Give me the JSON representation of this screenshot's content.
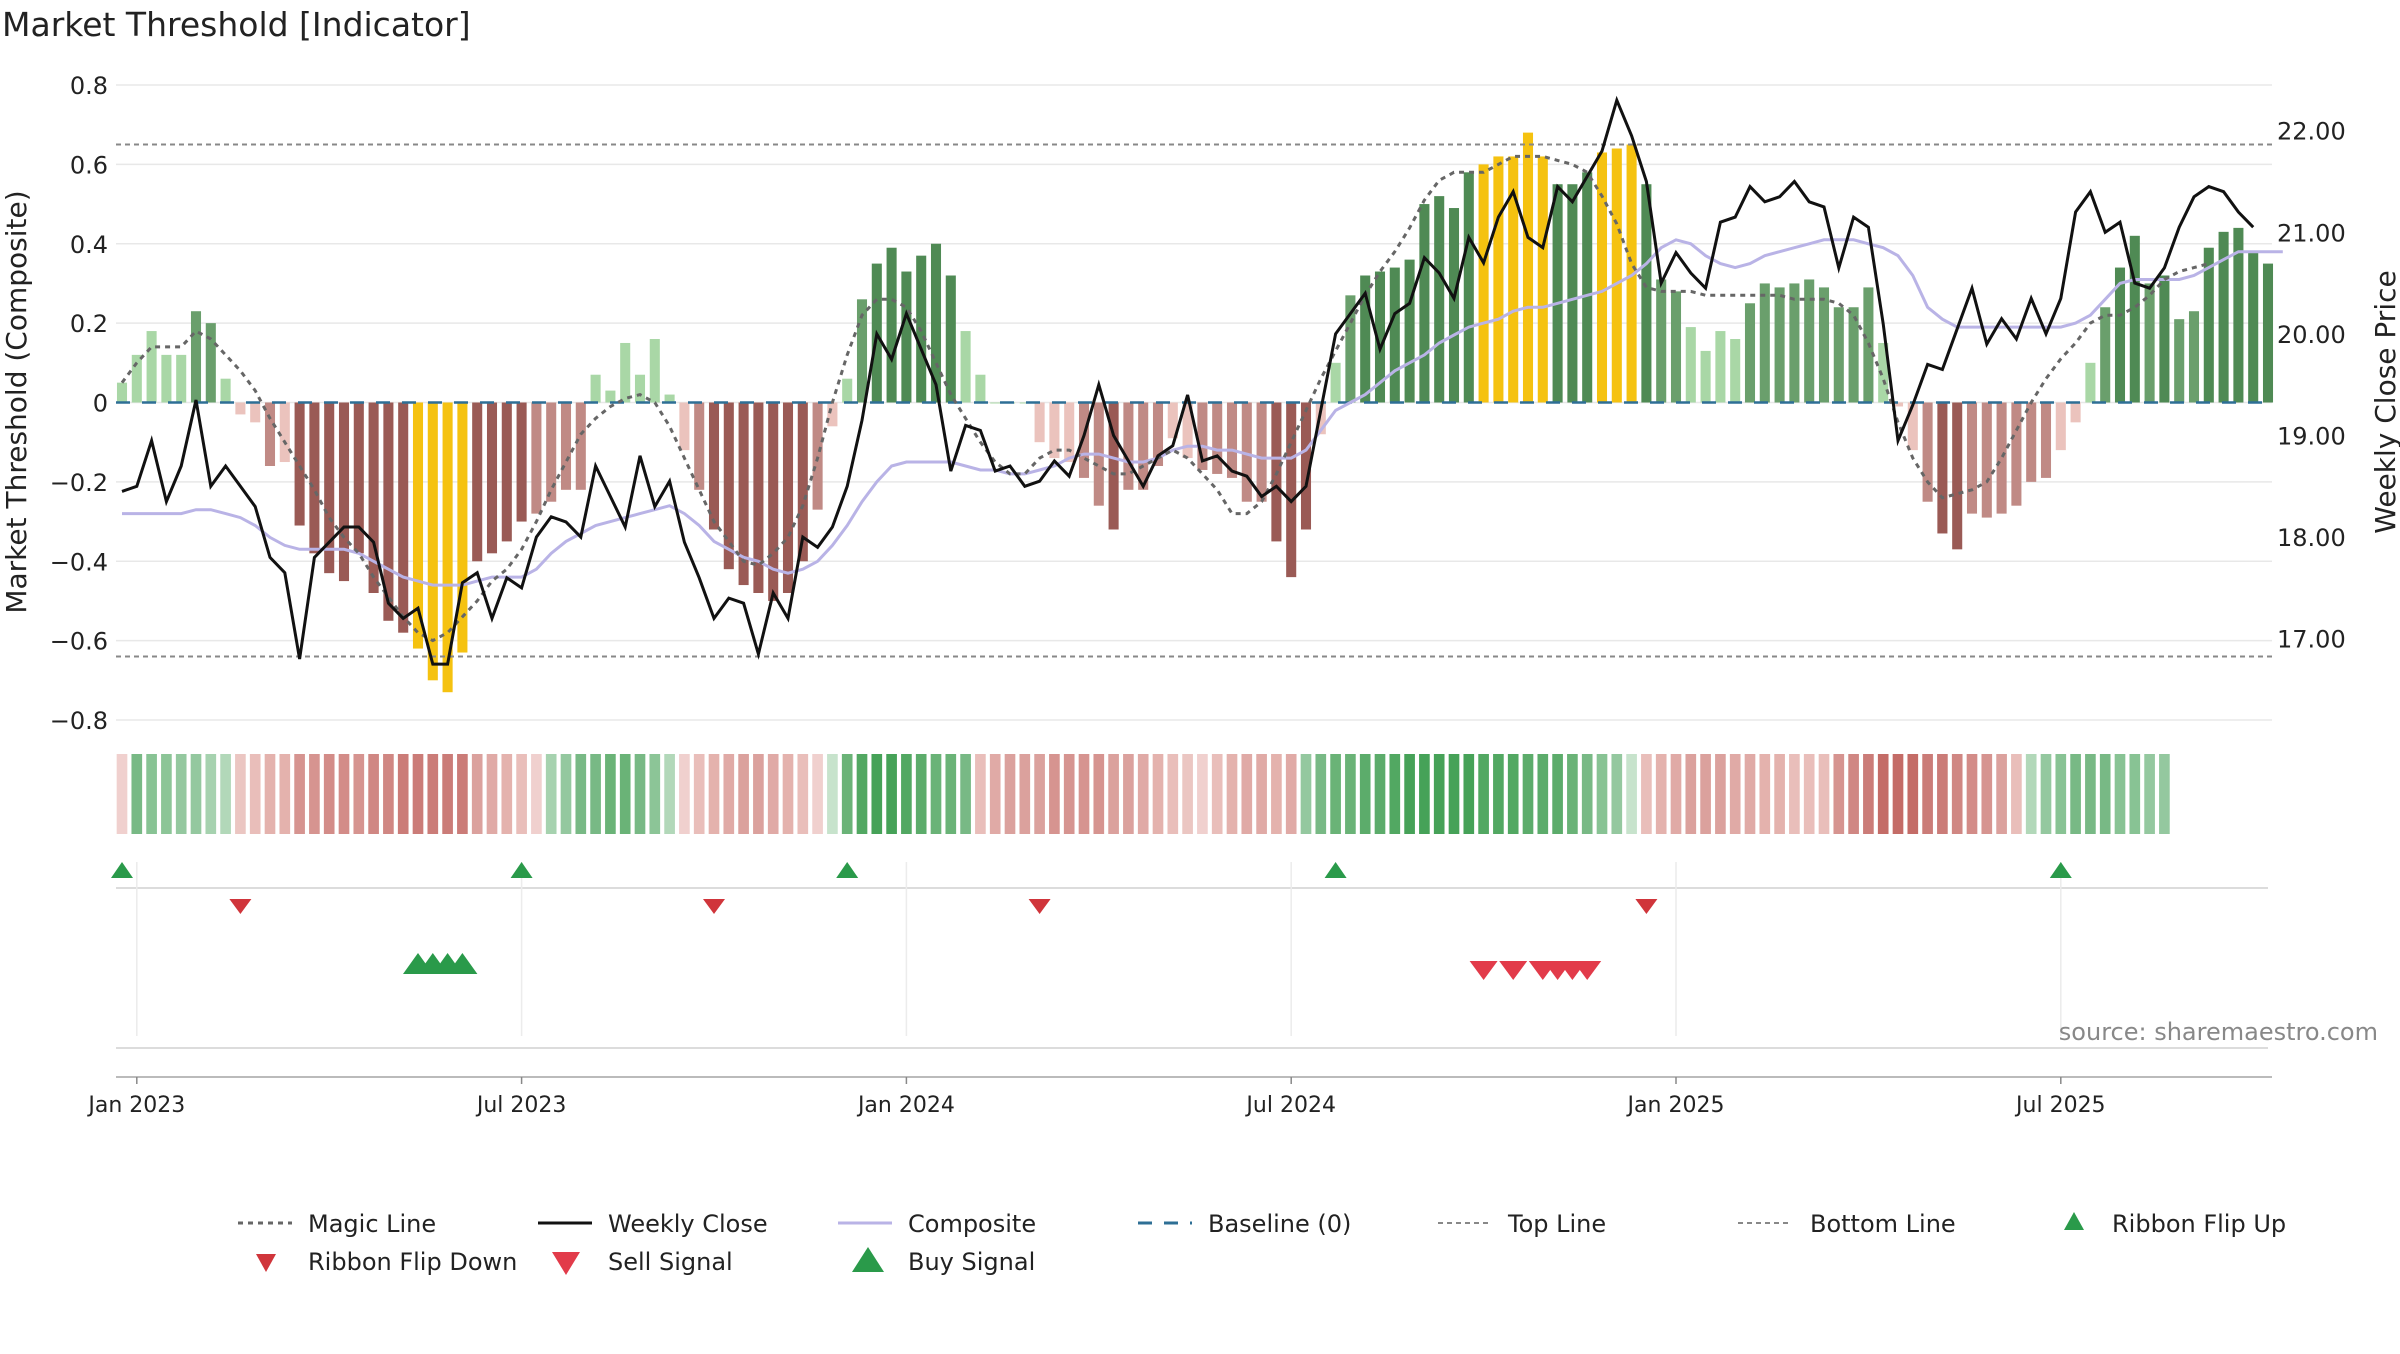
{
  "chart_data": {
    "type": "bar",
    "title": "Market Threshold [Indicator]",
    "ylabel": "Market Threshold (Composite)",
    "y2label": "Weekly Close Price",
    "ylim": [
      -0.8,
      0.8
    ],
    "y2lim": [
      16.2,
      22.45
    ],
    "yticks": [
      0.8,
      0.6,
      0.4,
      0.2,
      0,
      -0.2,
      -0.4,
      -0.6,
      -0.8
    ],
    "ytick_labels": [
      "0.8",
      "0.6",
      "0.4",
      "0.2",
      "0",
      "−0.2",
      "−0.4",
      "−0.6",
      "−0.8"
    ],
    "y2ticks": [
      22,
      21,
      20,
      19,
      18,
      17
    ],
    "y2tick_labels": [
      "22.00",
      "21.00",
      "20.00",
      "19.00",
      "18.00",
      "17.00"
    ],
    "xtick_labels": [
      "Jan 2023",
      "Jul 2023",
      "Jan 2024",
      "Jul 2024",
      "Jan 2025",
      "Jul 2025"
    ],
    "xtick_weeks": [
      1,
      27,
      53,
      79,
      105,
      131
    ],
    "top_line": 0.65,
    "bottom_line": -0.64,
    "source": "source: sharemaestro.com",
    "composite_bars": [
      0.05,
      0.12,
      0.18,
      0.12,
      0.12,
      0.23,
      0.2,
      0.06,
      -0.03,
      -0.05,
      -0.16,
      -0.15,
      -0.31,
      -0.38,
      -0.43,
      -0.45,
      -0.38,
      -0.48,
      -0.55,
      -0.58,
      -0.62,
      -0.7,
      -0.73,
      -0.63,
      -0.4,
      -0.38,
      -0.35,
      -0.3,
      -0.28,
      -0.25,
      -0.22,
      -0.22,
      0.07,
      0.03,
      0.15,
      0.07,
      0.16,
      0.02,
      -0.12,
      -0.22,
      -0.32,
      -0.42,
      -0.46,
      -0.48,
      -0.5,
      -0.48,
      -0.4,
      -0.27,
      -0.06,
      0.06,
      0.26,
      0.35,
      0.39,
      0.33,
      0.37,
      0.4,
      0.32,
      0.18,
      0.07,
      0.0,
      0.0,
      0.0,
      -0.1,
      -0.14,
      -0.15,
      -0.19,
      -0.26,
      -0.32,
      -0.22,
      -0.22,
      -0.16,
      -0.09,
      -0.14,
      -0.17,
      -0.18,
      -0.19,
      -0.25,
      -0.25,
      -0.35,
      -0.44,
      -0.32,
      -0.08,
      0.1,
      0.27,
      0.32,
      0.33,
      0.34,
      0.36,
      0.5,
      0.52,
      0.49,
      0.58,
      0.6,
      0.62,
      0.62,
      0.68,
      0.62,
      0.55,
      0.55,
      0.58,
      0.63,
      0.64,
      0.65,
      0.55,
      0.31,
      0.28,
      0.19,
      0.13,
      0.18,
      0.16,
      0.25,
      0.3,
      0.29,
      0.3,
      0.31,
      0.29,
      0.24,
      0.24,
      0.29,
      0.15,
      -0.01,
      -0.12,
      -0.25,
      -0.33,
      -0.37,
      -0.28,
      -0.29,
      -0.28,
      -0.26,
      -0.2,
      -0.19,
      -0.12,
      -0.05,
      0.1,
      0.24,
      0.34,
      0.42,
      0.3,
      0.32,
      0.21,
      0.23,
      0.39,
      0.43,
      0.44,
      0.38,
      0.35
    ],
    "weekly_close": [
      18.45,
      18.5,
      18.95,
      18.35,
      18.7,
      19.35,
      18.5,
      18.7,
      18.5,
      18.3,
      17.8,
      17.65,
      16.8,
      17.8,
      17.95,
      18.1,
      18.1,
      17.95,
      17.35,
      17.2,
      17.3,
      16.75,
      16.75,
      17.55,
      17.65,
      17.2,
      17.6,
      17.5,
      18.0,
      18.2,
      18.15,
      18.0,
      18.7,
      18.4,
      18.1,
      18.8,
      18.3,
      18.55,
      17.95,
      17.6,
      17.2,
      17.4,
      17.35,
      16.85,
      17.45,
      17.2,
      18.0,
      17.9,
      18.1,
      18.5,
      19.15,
      20.0,
      19.75,
      20.2,
      19.85,
      19.5,
      18.65,
      19.1,
      19.05,
      18.65,
      18.7,
      18.5,
      18.55,
      18.75,
      18.6,
      19.0,
      19.5,
      19.0,
      18.75,
      18.5,
      18.8,
      18.9,
      19.4,
      18.75,
      18.8,
      18.65,
      18.6,
      18.4,
      18.5,
      18.35,
      18.5,
      19.25,
      20.0,
      20.2,
      20.4,
      19.85,
      20.2,
      20.3,
      20.75,
      20.6,
      20.35,
      20.95,
      20.7,
      21.15,
      21.4,
      20.95,
      20.85,
      21.45,
      21.3,
      21.55,
      21.8,
      22.3,
      21.95,
      21.5,
      20.5,
      20.8,
      20.6,
      20.45,
      21.1,
      21.15,
      21.45,
      21.3,
      21.35,
      21.5,
      21.3,
      21.25,
      20.65,
      21.15,
      21.05,
      20.1,
      18.95,
      19.3,
      19.7,
      19.65,
      20.05,
      20.45,
      19.9,
      20.15,
      19.95,
      20.35,
      20.0,
      20.35,
      21.2,
      21.4,
      21.0,
      21.1,
      20.5,
      20.45,
      20.65,
      21.05,
      21.35,
      21.45,
      21.4,
      21.2,
      21.05
    ],
    "composite_line": [
      -0.28,
      -0.28,
      -0.28,
      -0.28,
      -0.28,
      -0.27,
      -0.27,
      -0.28,
      -0.29,
      -0.31,
      -0.34,
      -0.36,
      -0.37,
      -0.37,
      -0.37,
      -0.37,
      -0.38,
      -0.4,
      -0.42,
      -0.44,
      -0.45,
      -0.46,
      -0.46,
      -0.46,
      -0.45,
      -0.44,
      -0.44,
      -0.44,
      -0.42,
      -0.38,
      -0.35,
      -0.33,
      -0.31,
      -0.3,
      -0.29,
      -0.28,
      -0.27,
      -0.26,
      -0.28,
      -0.31,
      -0.35,
      -0.37,
      -0.39,
      -0.4,
      -0.42,
      -0.43,
      -0.42,
      -0.4,
      -0.36,
      -0.31,
      -0.25,
      -0.2,
      -0.16,
      -0.15,
      -0.15,
      -0.15,
      -0.15,
      -0.16,
      -0.17,
      -0.17,
      -0.18,
      -0.18,
      -0.17,
      -0.16,
      -0.14,
      -0.13,
      -0.13,
      -0.14,
      -0.15,
      -0.15,
      -0.14,
      -0.12,
      -0.11,
      -0.11,
      -0.12,
      -0.12,
      -0.13,
      -0.14,
      -0.14,
      -0.14,
      -0.12,
      -0.07,
      -0.02,
      0.0,
      0.02,
      0.05,
      0.08,
      0.1,
      0.12,
      0.15,
      0.17,
      0.19,
      0.2,
      0.21,
      0.23,
      0.24,
      0.24,
      0.25,
      0.26,
      0.27,
      0.28,
      0.3,
      0.32,
      0.35,
      0.39,
      0.41,
      0.4,
      0.37,
      0.35,
      0.34,
      0.35,
      0.37,
      0.38,
      0.39,
      0.4,
      0.41,
      0.41,
      0.41,
      0.4,
      0.39,
      0.37,
      0.32,
      0.24,
      0.21,
      0.19,
      0.19,
      0.19,
      0.19,
      0.19,
      0.19,
      0.19,
      0.19,
      0.2,
      0.22,
      0.26,
      0.3,
      0.31,
      0.31,
      0.31,
      0.31,
      0.32,
      0.34,
      0.36,
      0.38,
      0.38,
      0.38,
      0.38
    ],
    "magic_line": [
      0.05,
      0.1,
      0.14,
      0.14,
      0.14,
      0.18,
      0.16,
      0.12,
      0.08,
      0.03,
      -0.04,
      -0.1,
      -0.16,
      -0.22,
      -0.29,
      -0.34,
      -0.38,
      -0.44,
      -0.49,
      -0.54,
      -0.58,
      -0.6,
      -0.58,
      -0.54,
      -0.5,
      -0.45,
      -0.42,
      -0.37,
      -0.3,
      -0.22,
      -0.15,
      -0.08,
      -0.04,
      -0.01,
      0.01,
      0.02,
      0.0,
      -0.06,
      -0.14,
      -0.22,
      -0.3,
      -0.35,
      -0.4,
      -0.41,
      -0.38,
      -0.34,
      -0.26,
      -0.14,
      0.0,
      0.12,
      0.22,
      0.26,
      0.26,
      0.24,
      0.18,
      0.1,
      0.02,
      -0.04,
      -0.1,
      -0.15,
      -0.18,
      -0.18,
      -0.14,
      -0.12,
      -0.12,
      -0.14,
      -0.16,
      -0.18,
      -0.18,
      -0.16,
      -0.14,
      -0.12,
      -0.14,
      -0.18,
      -0.22,
      -0.28,
      -0.28,
      -0.25,
      -0.18,
      -0.1,
      -0.02,
      0.06,
      0.13,
      0.2,
      0.27,
      0.33,
      0.38,
      0.44,
      0.51,
      0.56,
      0.58,
      0.58,
      0.58,
      0.6,
      0.62,
      0.62,
      0.62,
      0.61,
      0.6,
      0.58,
      0.52,
      0.45,
      0.35,
      0.29,
      0.28,
      0.28,
      0.28,
      0.27,
      0.27,
      0.27,
      0.27,
      0.27,
      0.27,
      0.26,
      0.26,
      0.26,
      0.25,
      0.22,
      0.15,
      0.06,
      -0.05,
      -0.14,
      -0.2,
      -0.24,
      -0.23,
      -0.22,
      -0.2,
      -0.14,
      -0.07,
      0.0,
      0.06,
      0.11,
      0.15,
      0.2,
      0.22,
      0.22,
      0.24,
      0.27,
      0.31,
      0.33,
      0.34,
      0.35
    ],
    "ribbon_colors": [
      "#f0d0ce",
      "#78b985",
      "#88c394",
      "#8cc597",
      "#94c89f",
      "#94c89f",
      "#a6d2af",
      "#b2d8b9",
      "#ebc6c2",
      "#e9beba",
      "#e4b2ad",
      "#e4b2ad",
      "#d69490",
      "#d69490",
      "#d38c88",
      "#d38c88",
      "#d69490",
      "#d08783",
      "#d08783",
      "#cb7c78",
      "#cb7c78",
      "#cb7c78",
      "#cb7c78",
      "#cb7c78",
      "#dba19d",
      "#e0aaa6",
      "#e4b2ad",
      "#e9beba",
      "#f0d0ce",
      "#a6d2af",
      "#94c89f",
      "#78b985",
      "#78b985",
      "#6ab377",
      "#6ab377",
      "#78b985",
      "#8cc597",
      "#b2d8b9",
      "#f0d0ce",
      "#e9beba",
      "#e4b2ad",
      "#e0aaa6",
      "#dba19d",
      "#dba19d",
      "#e0aaa6",
      "#e4b2ad",
      "#e9beba",
      "#f0d0ce",
      "#c7e3cc",
      "#6ab377",
      "#52a862",
      "#46a258",
      "#46a258",
      "#52a862",
      "#5cac6b",
      "#6ab377",
      "#6ab377",
      "#78b985",
      "#e9beba",
      "#e0aaa6",
      "#dba19d",
      "#dba19d",
      "#dba19d",
      "#d69490",
      "#d69490",
      "#d69490",
      "#d69490",
      "#dba19d",
      "#dba19d",
      "#e0aaa6",
      "#e4b2ad",
      "#e9beba",
      "#ebc6c2",
      "#f0d0ce",
      "#e9beba",
      "#e4b2ad",
      "#e0aaa6",
      "#e0aaa6",
      "#e4b2ad",
      "#e0aaa6",
      "#94c89f",
      "#78b985",
      "#6ab377",
      "#6ab377",
      "#5cac6b",
      "#5cac6b",
      "#52a862",
      "#46a258",
      "#46a258",
      "#46a258",
      "#46a258",
      "#46a258",
      "#52a862",
      "#52a862",
      "#52a862",
      "#5cac6b",
      "#5cac6b",
      "#5cac6b",
      "#6ab377",
      "#78b985",
      "#88c394",
      "#94c89f",
      "#c7e3cc",
      "#e9beba",
      "#e4b2ad",
      "#e0aaa6",
      "#dba19d",
      "#dba19d",
      "#dba19d",
      "#e0aaa6",
      "#e0aaa6",
      "#e4b2ad",
      "#e4b2ad",
      "#e9beba",
      "#e9beba",
      "#e9beba",
      "#d69490",
      "#d08783",
      "#cb7c78",
      "#c46c67",
      "#c46c67",
      "#c46c67",
      "#cb7c78",
      "#cb7c78",
      "#d08783",
      "#d38c88",
      "#d69490",
      "#dba19d",
      "#e9beba",
      "#b2d8b9",
      "#94c89f",
      "#88c394",
      "#78b985",
      "#78b985",
      "#78b985",
      "#88c394",
      "#88c394",
      "#94c89f",
      "#94c89f"
    ],
    "ribbon_flip_up_weeks": [
      0,
      27,
      49,
      82,
      131
    ],
    "ribbon_flip_down_weeks": [
      8,
      40,
      62,
      103
    ],
    "buy_signal_weeks": [
      20,
      21,
      22,
      23
    ],
    "sell_signal_weeks": [
      92,
      94,
      96,
      97,
      98,
      99
    ],
    "legend": [
      "Magic Line",
      "Weekly Close",
      "Composite",
      "Baseline (0)",
      "Top Line",
      "Bottom Line",
      "Ribbon Flip Up",
      "Ribbon Flip Down",
      "Sell Signal",
      "Buy Signal"
    ]
  }
}
